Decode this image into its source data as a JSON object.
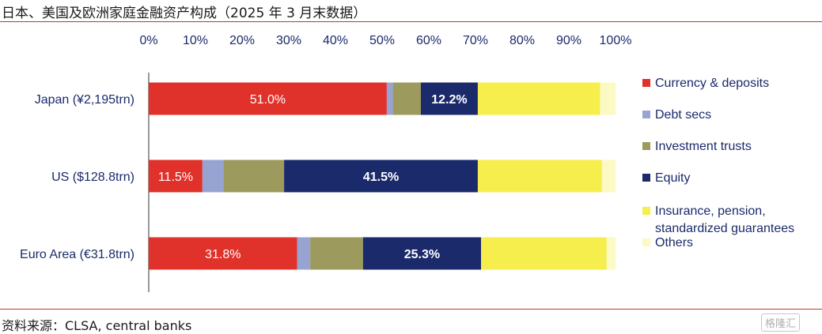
{
  "title": "日本、美国及欧洲家庭金融资产构成（2025 年 3 月末数据）",
  "source": "资料来源：CLSA, central banks",
  "watermark": "格隆汇",
  "chart_data": {
    "type": "bar",
    "orientation": "horizontal",
    "stacked": true,
    "xlim": [
      0,
      100
    ],
    "x_ticks": [
      "0%",
      "10%",
      "20%",
      "30%",
      "40%",
      "50%",
      "60%",
      "70%",
      "80%",
      "90%",
      "100%"
    ],
    "categories": [
      "Japan (¥2,195trn)",
      "US ($128.8trn)",
      "Euro Area (€31.8trn)"
    ],
    "series": [
      {
        "name": "Currency & deposits",
        "color": "#e0312a",
        "values": [
          51.0,
          11.5,
          31.8
        ],
        "labels": [
          "51.0%",
          "11.5%",
          "31.8%"
        ]
      },
      {
        "name": "Debt secs",
        "color": "#97a4d2",
        "values": [
          1.3,
          4.5,
          2.8
        ],
        "labels": [
          "",
          "",
          ""
        ]
      },
      {
        "name": "Investment trusts",
        "color": "#9c9a5c",
        "values": [
          6.0,
          13.0,
          11.3
        ],
        "labels": [
          "",
          "",
          ""
        ]
      },
      {
        "name": "Equity",
        "color": "#1b2a6b",
        "values": [
          12.2,
          41.5,
          25.3
        ],
        "labels": [
          "12.2%",
          "41.5%",
          "25.3%"
        ]
      },
      {
        "name": "Insurance, pension, standardized guarantees",
        "color": "#f6ee4c",
        "values": [
          26.2,
          26.6,
          26.9
        ],
        "labels": [
          "",
          "",
          ""
        ]
      },
      {
        "name": "Others",
        "color": "#fbf9c4",
        "values": [
          3.3,
          2.9,
          1.9
        ],
        "labels": [
          "",
          "",
          ""
        ]
      }
    ],
    "legend_position": "right",
    "grid": false
  }
}
